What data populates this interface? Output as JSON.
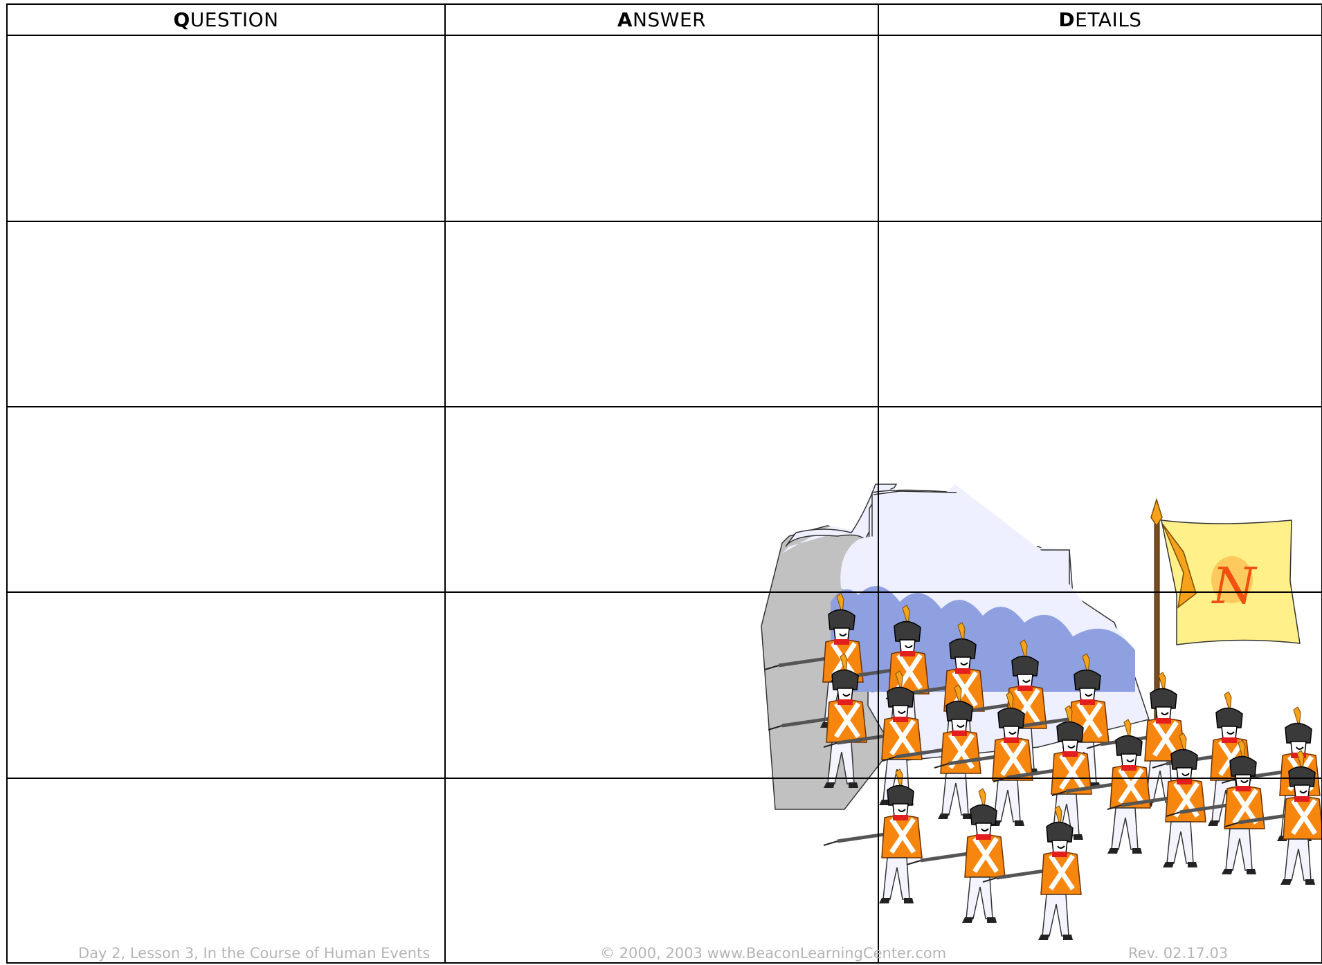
{
  "table": {
    "headers": [
      "QUESTION",
      "ANSWER",
      "DETAILS"
    ]
  },
  "illustration": {
    "flag_letter": "N"
  },
  "footer": {
    "left": "Day 2, Lesson 3, In the Course of Human Events",
    "center": "© 2000, 2003 www.BeaconLearningCenter.com",
    "right": "Rev. 02.17.03"
  }
}
